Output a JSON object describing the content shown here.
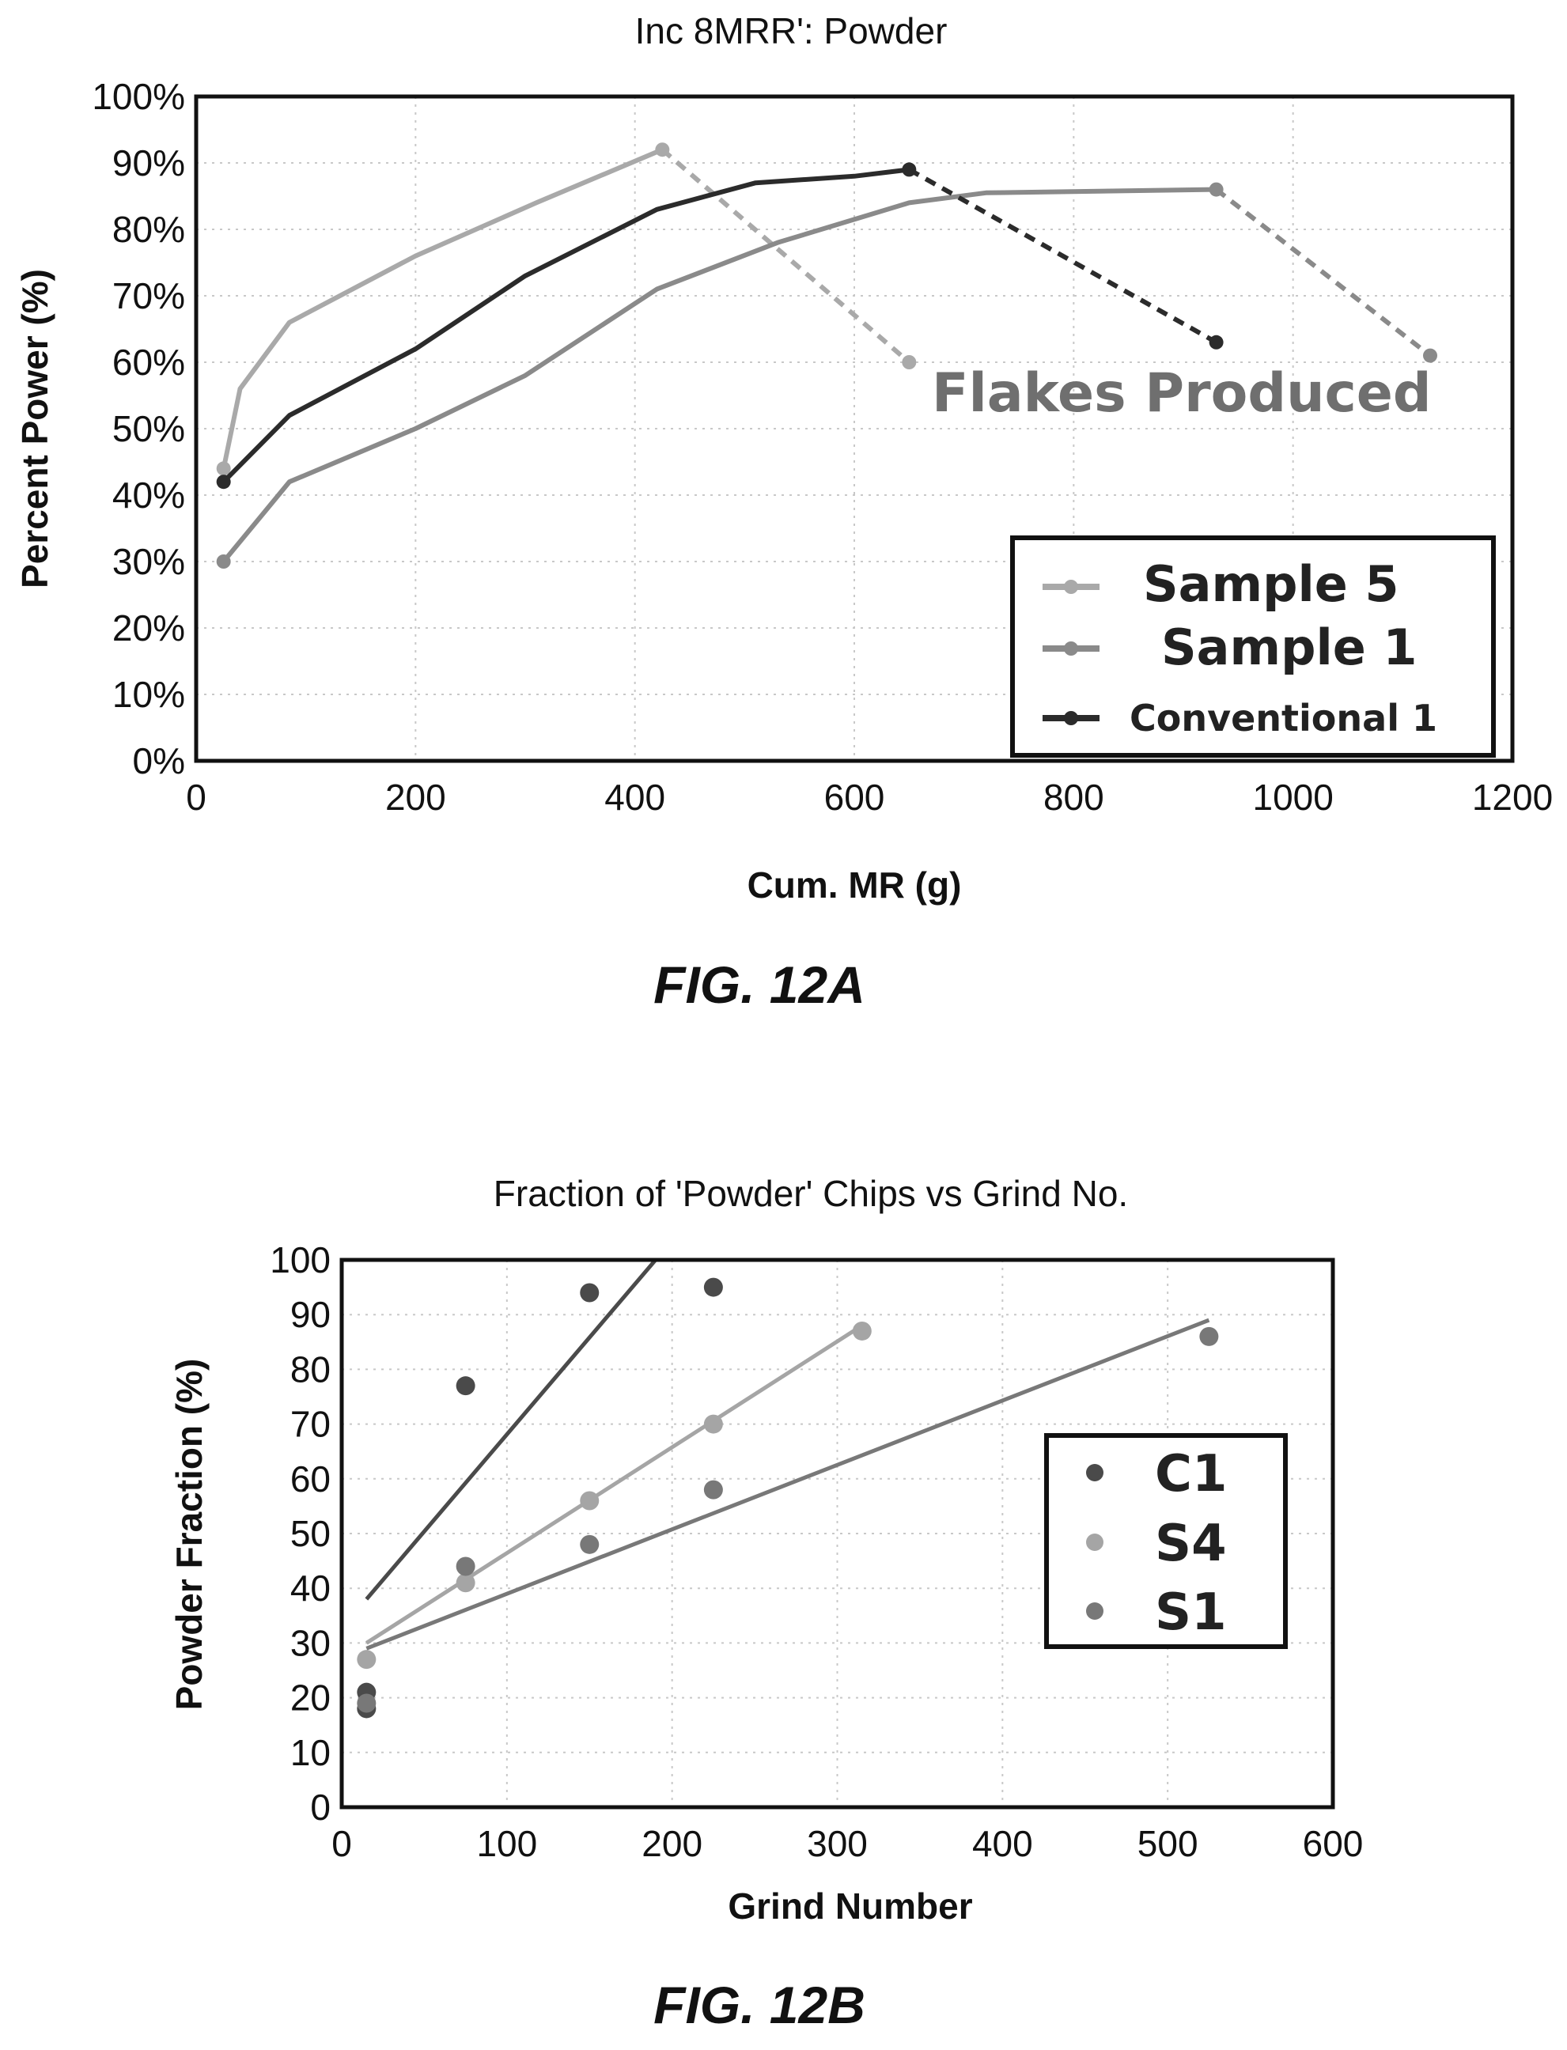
{
  "figures": [
    {
      "caption": "FIG. 12A"
    },
    {
      "caption": "FIG. 12B"
    }
  ],
  "chart_data": [
    {
      "type": "line",
      "title": "Inc 8MRR': Powder",
      "xlabel": "Cum. MR (g)",
      "ylabel": "Percent Power (%)",
      "xlim": [
        0,
        1200
      ],
      "ylim": [
        0,
        100
      ],
      "x_ticks": [
        "0",
        "200",
        "400",
        "600",
        "800",
        "1000",
        "1200"
      ],
      "y_ticks": [
        "0%",
        "10%",
        "20%",
        "30%",
        "40%",
        "50%",
        "60%",
        "70%",
        "80%",
        "90%",
        "100%"
      ],
      "grid": true,
      "legend_position": "bottom-right",
      "annotation": "Flakes Produced",
      "series": [
        {
          "name": "Sample 5",
          "color": "#a9a9a9",
          "x": [
            25,
            40,
            85,
            200,
            310,
            425
          ],
          "y": [
            44,
            56,
            66,
            76,
            84,
            92
          ],
          "dashed_x": [
            425,
            650
          ],
          "dashed_y": [
            92,
            60
          ]
        },
        {
          "name": "Sample 1",
          "color": "#8a8a8a",
          "x": [
            25,
            85,
            200,
            300,
            420,
            530,
            650,
            720,
            930
          ],
          "y": [
            30,
            42,
            50,
            58,
            71,
            78,
            84,
            85.5,
            86
          ],
          "dashed_x": [
            930,
            1125
          ],
          "dashed_y": [
            86,
            61
          ]
        },
        {
          "name": "Conventional 1",
          "color": "#2b2b2b",
          "x": [
            25,
            85,
            200,
            300,
            420,
            510,
            600,
            650
          ],
          "y": [
            42,
            52,
            62,
            73,
            83,
            87,
            88,
            89
          ],
          "dashed_x": [
            650,
            930
          ],
          "dashed_y": [
            89,
            63
          ]
        }
      ]
    },
    {
      "type": "scatter",
      "title": "Fraction of 'Powder' Chips vs Grind No.",
      "xlabel": "Grind Number",
      "ylabel": "Powder Fraction (%)",
      "xlim": [
        0,
        600
      ],
      "ylim": [
        0,
        100
      ],
      "x_ticks": [
        "0",
        "100",
        "200",
        "300",
        "400",
        "500",
        "600"
      ],
      "y_ticks": [
        "0",
        "10",
        "20",
        "30",
        "40",
        "50",
        "60",
        "70",
        "80",
        "90",
        "100"
      ],
      "grid": true,
      "legend_position": "right",
      "series": [
        {
          "name": "C1",
          "color": "#4a4a4a",
          "x": [
            15,
            15,
            75,
            150,
            225
          ],
          "y": [
            21,
            18,
            77,
            94,
            95
          ],
          "trend": [
            [
              15,
              38
            ],
            [
              190,
              100
            ]
          ]
        },
        {
          "name": "S4",
          "color": "#a5a5a5",
          "x": [
            15,
            75,
            150,
            225,
            315
          ],
          "y": [
            27,
            41,
            56,
            70,
            87
          ],
          "trend": [
            [
              15,
              30
            ],
            [
              315,
              88
            ]
          ]
        },
        {
          "name": "S1",
          "color": "#787878",
          "x": [
            15,
            75,
            150,
            225,
            525
          ],
          "y": [
            19,
            44,
            48,
            58,
            86
          ],
          "trend": [
            [
              15,
              29
            ],
            [
              525,
              89
            ]
          ]
        }
      ]
    }
  ]
}
